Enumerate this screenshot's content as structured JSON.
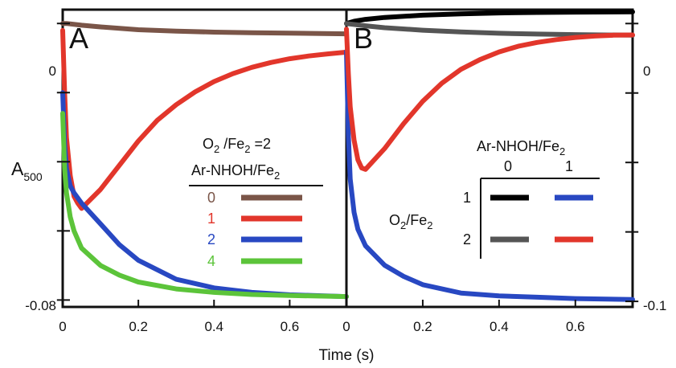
{
  "chart_data": [
    {
      "type": "line",
      "panel": "A",
      "xlabel": "Time (s)",
      "ylabel": "A500",
      "xlim": [
        0,
        0.75
      ],
      "ylim": [
        -0.082,
        0.004
      ],
      "x_ticks": [
        "0",
        "0.2",
        "0.4",
        "0.6"
      ],
      "y_tick_labels": [
        "0",
        "-0.08"
      ],
      "legend": {
        "title_line1": "O2/Fe2=2",
        "title_line2": "Ar-NHOH/Fe2",
        "placement": "center-right"
      },
      "series": [
        {
          "name": "0",
          "color": "#7a5548",
          "x": [
            0,
            0.01,
            0.05,
            0.1,
            0.2,
            0.3,
            0.4,
            0.5,
            0.6,
            0.75
          ],
          "y": [
            0.0,
            0.0,
            -0.0005,
            -0.001,
            -0.0018,
            -0.0022,
            -0.0025,
            -0.0027,
            -0.0028,
            -0.003
          ]
        },
        {
          "name": "1",
          "color": "#e2362b",
          "x": [
            0,
            0.005,
            0.01,
            0.02,
            0.03,
            0.04,
            0.05,
            0.1,
            0.15,
            0.2,
            0.25,
            0.3,
            0.35,
            0.4,
            0.45,
            0.5,
            0.55,
            0.6,
            0.65,
            0.7,
            0.75
          ],
          "y": [
            -0.002,
            -0.02,
            -0.033,
            -0.044,
            -0.05,
            -0.052,
            -0.0535,
            -0.048,
            -0.041,
            -0.034,
            -0.028,
            -0.0235,
            -0.0198,
            -0.0168,
            -0.0145,
            -0.0127,
            -0.0113,
            -0.0102,
            -0.0094,
            -0.0088,
            -0.0083
          ]
        },
        {
          "name": "2",
          "color": "#2848c2",
          "x": [
            0,
            0.005,
            0.01,
            0.02,
            0.03,
            0.05,
            0.1,
            0.15,
            0.2,
            0.3,
            0.4,
            0.5,
            0.6,
            0.75
          ],
          "y": [
            -0.02,
            -0.035,
            -0.042,
            -0.047,
            -0.049,
            -0.052,
            -0.058,
            -0.064,
            -0.0685,
            -0.074,
            -0.0765,
            -0.0778,
            -0.0785,
            -0.079
          ]
        },
        {
          "name": "4",
          "color": "#5cc43a",
          "x": [
            0,
            0.005,
            0.01,
            0.02,
            0.03,
            0.05,
            0.1,
            0.15,
            0.2,
            0.3,
            0.4,
            0.5,
            0.6,
            0.75
          ],
          "y": [
            -0.026,
            -0.042,
            -0.049,
            -0.056,
            -0.06,
            -0.065,
            -0.07,
            -0.0728,
            -0.0748,
            -0.0768,
            -0.0778,
            -0.0784,
            -0.0787,
            -0.079
          ]
        }
      ]
    },
    {
      "type": "line",
      "panel": "B",
      "xlabel": "Time (s)",
      "xlim": [
        0,
        0.75
      ],
      "ylim": [
        -0.102,
        0.005
      ],
      "x_ticks": [
        "0",
        "0.2",
        "0.4",
        "0.6"
      ],
      "y_tick_labels": [
        "0",
        "-0.1"
      ],
      "legend": {
        "col_header": "Ar-NHOH/Fe2",
        "row_header": "O2/Fe2",
        "columns": [
          "0",
          "1"
        ],
        "rows": [
          "1",
          "2"
        ],
        "placement": "center-right"
      },
      "series": [
        {
          "name": "O2/Fe2=1, Ar-NHOH/Fe2=0",
          "color": "#000000",
          "x": [
            0,
            0.02,
            0.05,
            0.1,
            0.2,
            0.3,
            0.4,
            0.5,
            0.6,
            0.75
          ],
          "y": [
            0.0,
            0.0008,
            0.0015,
            0.0022,
            0.003,
            0.0035,
            0.0038,
            0.004,
            0.0041,
            0.0042
          ]
        },
        {
          "name": "O2/Fe2=2, Ar-NHOH/Fe2=0",
          "color": "#555555",
          "x": [
            0,
            0.05,
            0.1,
            0.2,
            0.3,
            0.4,
            0.5,
            0.6,
            0.75
          ],
          "y": [
            0.0,
            -0.0008,
            -0.0015,
            -0.0024,
            -0.003,
            -0.0035,
            -0.0038,
            -0.004,
            -0.0042
          ]
        },
        {
          "name": "O2/Fe2=1, Ar-NHOH/Fe2=1",
          "color": "#2848c2",
          "x": [
            0,
            0.005,
            0.01,
            0.02,
            0.03,
            0.05,
            0.1,
            0.15,
            0.2,
            0.3,
            0.4,
            0.5,
            0.6,
            0.75
          ],
          "y": [
            -0.01,
            -0.04,
            -0.056,
            -0.068,
            -0.074,
            -0.08,
            -0.087,
            -0.091,
            -0.094,
            -0.097,
            -0.098,
            -0.0985,
            -0.099,
            -0.0993
          ]
        },
        {
          "name": "O2/Fe2=2, Ar-NHOH/Fe2=1",
          "color": "#e2362b",
          "x": [
            0,
            0.005,
            0.01,
            0.02,
            0.03,
            0.04,
            0.05,
            0.1,
            0.15,
            0.2,
            0.25,
            0.3,
            0.35,
            0.4,
            0.45,
            0.5,
            0.55,
            0.6,
            0.65,
            0.7,
            0.75
          ],
          "y": [
            -0.002,
            -0.018,
            -0.03,
            -0.042,
            -0.049,
            -0.052,
            -0.0525,
            -0.045,
            -0.036,
            -0.028,
            -0.0215,
            -0.0165,
            -0.013,
            -0.0102,
            -0.0082,
            -0.0068,
            -0.0058,
            -0.005,
            -0.0045,
            -0.0042,
            -0.0041
          ]
        }
      ]
    }
  ]
}
